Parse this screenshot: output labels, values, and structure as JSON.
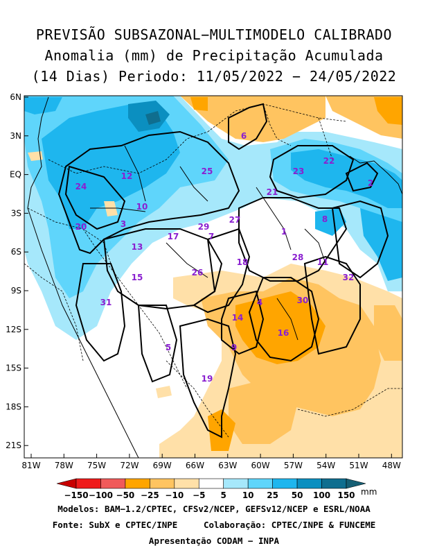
{
  "title": {
    "line1": "PREVISÃO SUBSAZONAL−MULTIMODELO CALIBRADO",
    "line2": "Anomalia (mm) de Precipitação Acumulada",
    "line3": "(14 Dias) Periodo: 11/05/2022 − 24/05/2022"
  },
  "axes": {
    "lat_labels": [
      "6N",
      "3N",
      "EQ",
      "3S",
      "6S",
      "9S",
      "12S",
      "15S",
      "18S",
      "21S"
    ],
    "lon_labels": [
      "81W",
      "78W",
      "75W",
      "72W",
      "69W",
      "66W",
      "63W",
      "60W",
      "57W",
      "54W",
      "51W",
      "48W"
    ]
  },
  "colorbar": {
    "labels": [
      "−150",
      "−100",
      "−50",
      "−25",
      "−10",
      "−5",
      "5",
      "10",
      "25",
      "50",
      "100",
      "150"
    ],
    "colors": [
      "#c80000",
      "#ef1b1b",
      "#f05a5a",
      "#ffa500",
      "#ffc460",
      "#ffe0a8",
      "#ffffff",
      "#a6e8fb",
      "#5fd5fb",
      "#1eb6ee",
      "#0b8fc0",
      "#0f6e8f",
      "#155f74"
    ],
    "unit": "mm"
  },
  "basins": [
    {
      "id": "1"
    },
    {
      "id": "2"
    },
    {
      "id": "3"
    },
    {
      "id": "4"
    },
    {
      "id": "5"
    },
    {
      "id": "6"
    },
    {
      "id": "7"
    },
    {
      "id": "8"
    },
    {
      "id": "9"
    },
    {
      "id": "10"
    },
    {
      "id": "11"
    },
    {
      "id": "12"
    },
    {
      "id": "13"
    },
    {
      "id": "14"
    },
    {
      "id": "15"
    },
    {
      "id": "16"
    },
    {
      "id": "17"
    },
    {
      "id": "18"
    },
    {
      "id": "19"
    },
    {
      "id": "20"
    },
    {
      "id": "21"
    },
    {
      "id": "22"
    },
    {
      "id": "23"
    },
    {
      "id": "24"
    },
    {
      "id": "25"
    },
    {
      "id": "26"
    },
    {
      "id": "27"
    },
    {
      "id": "28"
    },
    {
      "id": "29"
    },
    {
      "id": "30"
    },
    {
      "id": "31"
    },
    {
      "id": "32"
    }
  ],
  "footer": {
    "models": "Modelos: BAM−1.2/CPTEC, CFSv2/NCEP, GEFSv12/NCEP e ESRL/NOAA",
    "source": "Fonte: SubX e CPTEC/INPE     Colaboração: CPTEC/INPE & FUNCEME",
    "presentation": "Apresentação CODAM − INPA"
  }
}
